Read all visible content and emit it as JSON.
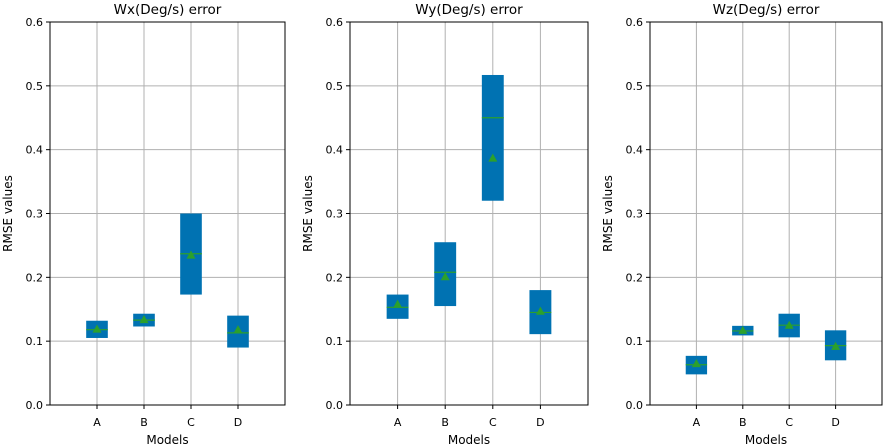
{
  "chart_data": [
    {
      "type": "box",
      "title": "Wx(Deg/s) error",
      "xlabel": "Models",
      "ylabel": "RMSE values",
      "ylim": [
        0,
        0.6
      ],
      "yticks": [
        "0.0",
        "0.1",
        "0.2",
        "0.3",
        "0.4",
        "0.5",
        "0.6"
      ],
      "categories": [
        "A",
        "B",
        "C",
        "D"
      ],
      "grid": true,
      "boxes": [
        {
          "q1": 0.105,
          "q3": 0.132,
          "median": 0.118,
          "mean": 0.119
        },
        {
          "q1": 0.123,
          "q3": 0.143,
          "median": 0.133,
          "mean": 0.134
        },
        {
          "q1": 0.173,
          "q3": 0.3,
          "median": 0.237,
          "mean": 0.235
        },
        {
          "q1": 0.09,
          "q3": 0.14,
          "median": 0.113,
          "mean": 0.118
        }
      ]
    },
    {
      "type": "box",
      "title": "Wy(Deg/s) error",
      "xlabel": "Models",
      "ylabel": "RMSE values",
      "ylim": [
        0,
        0.6
      ],
      "yticks": [
        "0.0",
        "0.1",
        "0.2",
        "0.3",
        "0.4",
        "0.5",
        "0.6"
      ],
      "categories": [
        "A",
        "B",
        "C",
        "D"
      ],
      "grid": true,
      "boxes": [
        {
          "q1": 0.135,
          "q3": 0.173,
          "median": 0.153,
          "mean": 0.158
        },
        {
          "q1": 0.155,
          "q3": 0.255,
          "median": 0.208,
          "mean": 0.201
        },
        {
          "q1": 0.32,
          "q3": 0.517,
          "median": 0.45,
          "mean": 0.387
        },
        {
          "q1": 0.111,
          "q3": 0.18,
          "median": 0.145,
          "mean": 0.147
        }
      ]
    },
    {
      "type": "box",
      "title": "Wz(Deg/s) error",
      "xlabel": "Models",
      "ylabel": "RMSE values",
      "ylim": [
        0,
        0.6
      ],
      "yticks": [
        "0.0",
        "0.1",
        "0.2",
        "0.3",
        "0.4",
        "0.5",
        "0.6"
      ],
      "categories": [
        "A",
        "B",
        "C",
        "D"
      ],
      "grid": true,
      "boxes": [
        {
          "q1": 0.048,
          "q3": 0.077,
          "median": 0.063,
          "mean": 0.065
        },
        {
          "q1": 0.109,
          "q3": 0.124,
          "median": 0.116,
          "mean": 0.117
        },
        {
          "q1": 0.106,
          "q3": 0.143,
          "median": 0.125,
          "mean": 0.125
        },
        {
          "q1": 0.07,
          "q3": 0.117,
          "median": 0.093,
          "mean": 0.092
        }
      ]
    }
  ],
  "colors": {
    "box_fill": "#0072B2",
    "median_line": "#2ca02c",
    "mean_marker": "#2ca02c",
    "grid": "#b0b0b0",
    "axis": "#000000"
  }
}
